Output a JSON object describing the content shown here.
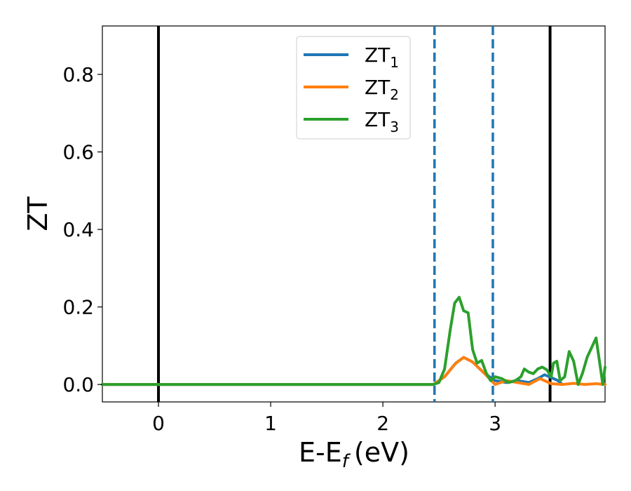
{
  "chart_data": {
    "type": "line",
    "xlabel_main": "E-E",
    "xlabel_sub": "f",
    "xlabel_unit": "(eV)",
    "ylabel": "ZT",
    "xlim": [
      -0.5,
      3.98
    ],
    "ylim": [
      -0.045,
      0.925
    ],
    "xticks": [
      0,
      1,
      2,
      3
    ],
    "xtick_labels": [
      "0",
      "1",
      "2",
      "3"
    ],
    "yticks": [
      0.0,
      0.2,
      0.4,
      0.6,
      0.8
    ],
    "ytick_labels": [
      "0.0",
      "0.2",
      "0.4",
      "0.6",
      "0.8"
    ],
    "grid": false,
    "legend_position": "top-center",
    "vertical_lines": [
      {
        "x": 0.0,
        "style": "solid",
        "color": "#000000"
      },
      {
        "x": 3.49,
        "style": "solid",
        "color": "#000000"
      },
      {
        "x": 2.46,
        "style": "dashed",
        "color": "#1f77b4"
      },
      {
        "x": 2.98,
        "style": "dashed",
        "color": "#1f77b4"
      }
    ],
    "series": [
      {
        "name": "ZT",
        "subscript": "1",
        "color": "#1f77b4",
        "x": [
          -0.5,
          2.45,
          2.55,
          2.65,
          2.72,
          2.8,
          2.9,
          3.0,
          3.1,
          3.2,
          3.3,
          3.38,
          3.44,
          3.5,
          3.56,
          3.6
        ],
        "y": [
          0.0,
          0.0,
          0.02,
          0.055,
          0.07,
          0.058,
          0.03,
          0.01,
          0.005,
          0.01,
          0.005,
          0.015,
          0.025,
          0.018,
          0.01,
          0.0
        ]
      },
      {
        "name": "ZT",
        "subscript": "2",
        "color": "#ff7f0e",
        "x": [
          -0.5,
          2.45,
          2.55,
          2.65,
          2.72,
          2.8,
          2.9,
          3.0,
          3.1,
          3.2,
          3.3,
          3.4,
          3.5,
          3.6,
          3.7,
          3.8,
          3.9,
          3.98
        ],
        "y": [
          0.0,
          0.0,
          0.02,
          0.055,
          0.07,
          0.058,
          0.03,
          0.0,
          0.01,
          0.005,
          0.0,
          0.015,
          0.002,
          0.0,
          0.003,
          0.0,
          0.002,
          0.0
        ]
      },
      {
        "name": "ZT",
        "subscript": "3",
        "color": "#2ca02c",
        "x": [
          -0.5,
          2.45,
          2.5,
          2.55,
          2.6,
          2.64,
          2.68,
          2.72,
          2.76,
          2.8,
          2.84,
          2.88,
          2.92,
          2.96,
          3.0,
          3.06,
          3.12,
          3.18,
          3.23,
          3.26,
          3.3,
          3.34,
          3.38,
          3.42,
          3.46,
          3.5,
          3.52,
          3.55,
          3.58,
          3.62,
          3.66,
          3.7,
          3.74,
          3.78,
          3.82,
          3.86,
          3.9,
          3.93,
          3.96,
          3.98
        ],
        "y": [
          0.0,
          0.0,
          0.005,
          0.04,
          0.14,
          0.21,
          0.225,
          0.19,
          0.185,
          0.09,
          0.055,
          0.062,
          0.03,
          0.01,
          0.02,
          0.015,
          0.005,
          0.01,
          0.02,
          0.04,
          0.032,
          0.028,
          0.04,
          0.045,
          0.038,
          0.02,
          0.055,
          0.06,
          0.01,
          0.02,
          0.085,
          0.06,
          0.0,
          0.03,
          0.07,
          0.095,
          0.12,
          0.06,
          0.0,
          0.045
        ]
      }
    ]
  }
}
